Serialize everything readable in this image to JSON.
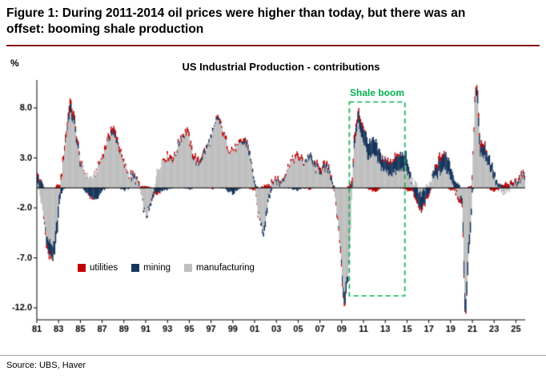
{
  "header": {
    "figure_title": "Figure 1: During 2011-2014 oil prices were higher than today, but there was an\noffset: booming shale production",
    "rule_color": "#7f1416"
  },
  "source": {
    "text": "Source: UBS, Haver"
  },
  "chart_data": {
    "type": "bar",
    "stacked": true,
    "title": "US Industrial Production - contributions",
    "ylabel": "%",
    "x_range": [
      1981,
      2025.85
    ],
    "ylim": [
      -13.2,
      10.8
    ],
    "yticks": [
      [
        8,
        "8.0"
      ],
      [
        3,
        "3.0"
      ],
      [
        -2,
        "-2.0"
      ],
      [
        -7,
        "-7.0"
      ],
      [
        -12,
        "-12.0"
      ]
    ],
    "xticks": [
      [
        1981,
        "81"
      ],
      [
        1983,
        "83"
      ],
      [
        1985,
        "85"
      ],
      [
        1987,
        "87"
      ],
      [
        1989,
        "89"
      ],
      [
        1991,
        "91"
      ],
      [
        1993,
        "93"
      ],
      [
        1995,
        "95"
      ],
      [
        1997,
        "97"
      ],
      [
        1999,
        "99"
      ],
      [
        2001,
        "01"
      ],
      [
        2003,
        "03"
      ],
      [
        2005,
        "05"
      ],
      [
        2007,
        "07"
      ],
      [
        2009,
        "09"
      ],
      [
        2011,
        "11"
      ],
      [
        2013,
        "13"
      ],
      [
        2015,
        "15"
      ],
      [
        2017,
        "17"
      ],
      [
        2019,
        "19"
      ],
      [
        2021,
        "21"
      ],
      [
        2023,
        "23"
      ],
      [
        2025,
        "25"
      ]
    ],
    "legend": [
      {
        "name": "utilities",
        "color": "#c00000"
      },
      {
        "name": "mining",
        "color": "#17365d"
      },
      {
        "name": "manufacturing",
        "color": "#bfbfbf"
      }
    ],
    "annotation": {
      "label": "Shale boom",
      "color": "#00b050",
      "x1": 2009.7,
      "x2": 2014.8,
      "y1": -10.8,
      "y2": 8.6
    },
    "series": [
      {
        "name": "manufacturing",
        "color": "#bfbfbf",
        "keypoints": [
          [
            1981.0,
            1.0
          ],
          [
            1981.4,
            -1.5
          ],
          [
            1982.0,
            -5.2
          ],
          [
            1982.6,
            -5.8
          ],
          [
            1983.0,
            -1.5
          ],
          [
            1983.5,
            3.5
          ],
          [
            1984.0,
            7.5
          ],
          [
            1984.4,
            6.5
          ],
          [
            1985.0,
            2.2
          ],
          [
            1985.6,
            1.2
          ],
          [
            1986.2,
            1.0
          ],
          [
            1987.0,
            3.0
          ],
          [
            1987.8,
            5.4
          ],
          [
            1988.3,
            4.8
          ],
          [
            1989.0,
            2.2
          ],
          [
            1989.6,
            1.0
          ],
          [
            1990.3,
            0.5
          ],
          [
            1991.0,
            -2.8
          ],
          [
            1991.5,
            -1.5
          ],
          [
            1992.0,
            1.5
          ],
          [
            1992.5,
            2.8
          ],
          [
            1993.0,
            3.0
          ],
          [
            1993.6,
            2.8
          ],
          [
            1994.2,
            4.8
          ],
          [
            1994.8,
            5.6
          ],
          [
            1995.3,
            3.2
          ],
          [
            1995.8,
            2.2
          ],
          [
            1996.3,
            3.2
          ],
          [
            1997.0,
            4.8
          ],
          [
            1997.6,
            7.0
          ],
          [
            1998.1,
            5.4
          ],
          [
            1998.6,
            3.8
          ],
          [
            1999.2,
            3.8
          ],
          [
            1999.8,
            4.4
          ],
          [
            2000.3,
            4.3
          ],
          [
            2000.8,
            1.8
          ],
          [
            2001.3,
            -2.5
          ],
          [
            2001.8,
            -4.2
          ],
          [
            2002.3,
            -0.5
          ],
          [
            2002.8,
            0.8
          ],
          [
            2003.3,
            0.3
          ],
          [
            2003.8,
            1.2
          ],
          [
            2004.3,
            2.6
          ],
          [
            2005.0,
            3.0
          ],
          [
            2005.5,
            2.4
          ],
          [
            2006.0,
            3.0
          ],
          [
            2006.6,
            1.8
          ],
          [
            2007.2,
            1.6
          ],
          [
            2007.8,
            1.8
          ],
          [
            2008.2,
            0.2
          ],
          [
            2008.7,
            -3.5
          ],
          [
            2009.2,
            -10.5
          ],
          [
            2009.6,
            -8.5
          ],
          [
            2010.1,
            3.5
          ],
          [
            2010.5,
            6.5
          ],
          [
            2011.0,
            4.6
          ],
          [
            2011.5,
            2.8
          ],
          [
            2012.0,
            3.2
          ],
          [
            2012.5,
            2.2
          ],
          [
            2013.0,
            1.6
          ],
          [
            2013.6,
            1.4
          ],
          [
            2014.2,
            1.6
          ],
          [
            2014.8,
            2.0
          ],
          [
            2015.3,
            0.8
          ],
          [
            2015.8,
            0.3
          ],
          [
            2016.3,
            -0.6
          ],
          [
            2016.8,
            0.0
          ],
          [
            2017.3,
            0.8
          ],
          [
            2017.8,
            1.2
          ],
          [
            2018.3,
            1.8
          ],
          [
            2018.8,
            1.6
          ],
          [
            2019.3,
            0.2
          ],
          [
            2019.8,
            -0.8
          ],
          [
            2020.1,
            -1.5
          ],
          [
            2020.35,
            -12.5
          ],
          [
            2020.6,
            -6.0
          ],
          [
            2020.9,
            -2.0
          ],
          [
            2021.2,
            8.0
          ],
          [
            2021.4,
            9.6
          ],
          [
            2021.7,
            3.5
          ],
          [
            2022.2,
            3.0
          ],
          [
            2022.7,
            1.8
          ],
          [
            2023.2,
            0.3
          ],
          [
            2023.7,
            -0.6
          ],
          [
            2024.2,
            -0.4
          ],
          [
            2024.7,
            0.2
          ],
          [
            2025.2,
            0.6
          ],
          [
            2025.8,
            1.2
          ]
        ]
      },
      {
        "name": "mining",
        "color": "#17365d",
        "keypoints": [
          [
            1981.0,
            1.0
          ],
          [
            1981.5,
            0.5
          ],
          [
            1982.0,
            -1.2
          ],
          [
            1982.5,
            -1.4
          ],
          [
            1983.0,
            -1.0
          ],
          [
            1983.5,
            0.0
          ],
          [
            1984.0,
            0.8
          ],
          [
            1985.0,
            0.2
          ],
          [
            1986.0,
            -1.0
          ],
          [
            1986.5,
            -1.2
          ],
          [
            1987.0,
            -0.3
          ],
          [
            1988.0,
            0.4
          ],
          [
            1989.0,
            -0.2
          ],
          [
            1990.0,
            0.3
          ],
          [
            1991.0,
            -0.2
          ],
          [
            1992.0,
            -0.4
          ],
          [
            1993.0,
            -0.1
          ],
          [
            1994.0,
            0.2
          ],
          [
            1995.0,
            -0.1
          ],
          [
            1996.0,
            0.2
          ],
          [
            1997.0,
            0.3
          ],
          [
            1998.0,
            0.1
          ],
          [
            1999.0,
            -0.6
          ],
          [
            2000.0,
            0.3
          ],
          [
            2001.0,
            0.3
          ],
          [
            2002.0,
            -0.6
          ],
          [
            2003.0,
            0.3
          ],
          [
            2004.0,
            0.0
          ],
          [
            2005.0,
            -0.2
          ],
          [
            2006.0,
            0.3
          ],
          [
            2007.0,
            0.2
          ],
          [
            2008.0,
            0.4
          ],
          [
            2008.8,
            -0.2
          ],
          [
            2009.3,
            -1.2
          ],
          [
            2010.0,
            0.6
          ],
          [
            2010.8,
            1.2
          ],
          [
            2011.3,
            1.5
          ],
          [
            2012.0,
            1.6
          ],
          [
            2012.6,
            1.2
          ],
          [
            2013.2,
            1.0
          ],
          [
            2013.8,
            1.3
          ],
          [
            2014.4,
            1.6
          ],
          [
            2014.9,
            1.4
          ],
          [
            2015.4,
            0.2
          ],
          [
            2015.9,
            -1.2
          ],
          [
            2016.4,
            -1.6
          ],
          [
            2016.9,
            -0.8
          ],
          [
            2017.4,
            0.6
          ],
          [
            2018.0,
            1.2
          ],
          [
            2018.6,
            1.6
          ],
          [
            2019.2,
            1.0
          ],
          [
            2019.8,
            0.2
          ],
          [
            2020.3,
            -1.6
          ],
          [
            2020.8,
            -1.0
          ],
          [
            2021.3,
            0.6
          ],
          [
            2022.0,
            1.0
          ],
          [
            2022.6,
            0.9
          ],
          [
            2023.2,
            0.4
          ],
          [
            2024.0,
            0.0
          ],
          [
            2024.8,
            0.2
          ],
          [
            2025.8,
            0.3
          ]
        ]
      },
      {
        "name": "utilities",
        "color": "#c00000",
        "keypoints": [
          [
            1981.0,
            0.3
          ],
          [
            1982.0,
            -0.4
          ],
          [
            1983.0,
            0.4
          ],
          [
            1984.0,
            0.5
          ],
          [
            1985.0,
            0.2
          ],
          [
            1986.0,
            -0.2
          ],
          [
            1987.0,
            0.3
          ],
          [
            1988.0,
            0.4
          ],
          [
            1989.0,
            0.2
          ],
          [
            1990.0,
            0.1
          ],
          [
            1991.0,
            0.2
          ],
          [
            1992.0,
            -0.3
          ],
          [
            1993.0,
            0.3
          ],
          [
            1994.0,
            0.1
          ],
          [
            1995.0,
            0.4
          ],
          [
            1996.0,
            0.3
          ],
          [
            1997.0,
            -0.1
          ],
          [
            1998.0,
            0.3
          ],
          [
            1999.0,
            0.2
          ],
          [
            2000.0,
            0.2
          ],
          [
            2001.0,
            -0.2
          ],
          [
            2002.0,
            0.3
          ],
          [
            2003.0,
            0.2
          ],
          [
            2004.0,
            0.1
          ],
          [
            2005.0,
            0.4
          ],
          [
            2006.0,
            -0.1
          ],
          [
            2007.0,
            0.3
          ],
          [
            2008.0,
            0.1
          ],
          [
            2009.0,
            -0.4
          ],
          [
            2010.0,
            0.5
          ],
          [
            2011.0,
            0.2
          ],
          [
            2012.0,
            -0.4
          ],
          [
            2013.0,
            0.2
          ],
          [
            2014.0,
            0.3
          ],
          [
            2015.0,
            -0.3
          ],
          [
            2016.0,
            -0.3
          ],
          [
            2017.0,
            -0.2
          ],
          [
            2018.0,
            0.5
          ],
          [
            2019.0,
            -0.2
          ],
          [
            2020.0,
            -0.4
          ],
          [
            2021.0,
            0.4
          ],
          [
            2022.0,
            0.4
          ],
          [
            2023.0,
            -0.4
          ],
          [
            2024.0,
            0.4
          ],
          [
            2025.0,
            0.2
          ],
          [
            2025.8,
            0.2
          ]
        ]
      }
    ]
  }
}
